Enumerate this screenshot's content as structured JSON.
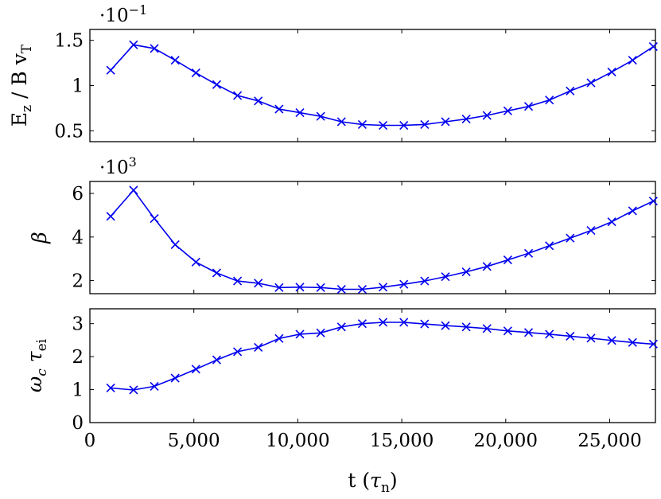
{
  "chart_data": [
    {
      "type": "line",
      "ylabel": "E_z / B v_T",
      "ylabel_parts": {
        "main": "E",
        "sub": "z",
        "rest": " / B v",
        "sub2": "T"
      },
      "multiplier": {
        "base": "·10",
        "exp": "−1"
      },
      "xlim": [
        0,
        27200
      ],
      "ylim": [
        0.38,
        1.62
      ],
      "yticks": [
        0.5,
        1,
        1.5
      ],
      "ytick_labels": [
        "0.5",
        "1",
        "1.5"
      ],
      "x": [
        1000,
        2100,
        3100,
        4100,
        5100,
        6100,
        7100,
        8100,
        9100,
        10100,
        11100,
        12100,
        13100,
        14100,
        15100,
        16100,
        17100,
        18100,
        19100,
        20100,
        21100,
        22100,
        23100,
        24100,
        25100,
        26100,
        27100
      ],
      "y": [
        1.17,
        1.45,
        1.41,
        1.28,
        1.14,
        1.01,
        0.89,
        0.83,
        0.74,
        0.7,
        0.66,
        0.6,
        0.57,
        0.56,
        0.56,
        0.57,
        0.6,
        0.63,
        0.67,
        0.72,
        0.77,
        0.84,
        0.94,
        1.03,
        1.15,
        1.28,
        1.43
      ],
      "grid": false
    },
    {
      "type": "line",
      "ylabel": "β",
      "multiplier": {
        "base": "·10",
        "exp": "3"
      },
      "xlim": [
        0,
        27200
      ],
      "ylim": [
        1.4,
        6.55
      ],
      "yticks": [
        2,
        4,
        6
      ],
      "ytick_labels": [
        "2",
        "4",
        "6"
      ],
      "x": [
        1000,
        2100,
        3100,
        4100,
        5100,
        6100,
        7100,
        8100,
        9100,
        10100,
        11100,
        12100,
        13100,
        14100,
        15100,
        16100,
        17100,
        18100,
        19100,
        20100,
        21100,
        22100,
        23100,
        24100,
        25100,
        26100,
        27100
      ],
      "y": [
        4.95,
        6.15,
        4.85,
        3.65,
        2.85,
        2.35,
        1.98,
        1.88,
        1.68,
        1.7,
        1.68,
        1.6,
        1.6,
        1.7,
        1.83,
        1.98,
        2.18,
        2.4,
        2.65,
        2.95,
        3.25,
        3.6,
        3.95,
        4.3,
        4.7,
        5.2,
        5.65
      ],
      "grid": false
    },
    {
      "type": "line",
      "ylabel": "ω_c τ_ei",
      "xlabel": "t (τ_n)",
      "xlim": [
        0,
        27200
      ],
      "ylim": [
        0,
        3.45
      ],
      "yticks": [
        0,
        1,
        2,
        3
      ],
      "ytick_labels": [
        "0",
        "1",
        "2",
        "3"
      ],
      "xticks": [
        0,
        5000,
        10000,
        15000,
        20000,
        25000
      ],
      "xtick_labels": [
        "0",
        "5,000",
        "10,000",
        "15,000",
        "20,000",
        "25,000"
      ],
      "x": [
        1000,
        2100,
        3100,
        4100,
        5100,
        6100,
        7100,
        8100,
        9100,
        10100,
        11100,
        12100,
        13100,
        14100,
        15100,
        16100,
        17100,
        18100,
        19100,
        20100,
        21100,
        22100,
        23100,
        24100,
        25100,
        26100,
        27100
      ],
      "y": [
        1.05,
        0.99,
        1.1,
        1.35,
        1.62,
        1.9,
        2.15,
        2.28,
        2.55,
        2.68,
        2.72,
        2.9,
        3.0,
        3.04,
        3.04,
        2.99,
        2.94,
        2.9,
        2.85,
        2.78,
        2.73,
        2.68,
        2.62,
        2.56,
        2.49,
        2.43,
        2.38
      ],
      "grid": false
    }
  ]
}
